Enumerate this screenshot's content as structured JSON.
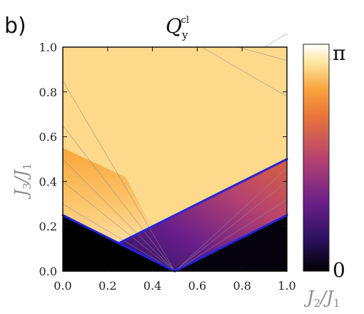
{
  "panel_tag": "b)",
  "chart_data": {
    "type": "heatmap",
    "title": {
      "symbol": "Q",
      "superscript": "cl",
      "subscript": "y"
    },
    "xlabel": {
      "num": "J",
      "num_sub": "2",
      "den": "J",
      "den_sub": "1"
    },
    "ylabel": {
      "num": "J",
      "num_sub": "3",
      "den": "J",
      "den_sub": "1"
    },
    "xlim": [
      0,
      1
    ],
    "ylim": [
      0,
      1
    ],
    "x_ticks": [
      0,
      0.2,
      0.4,
      0.6,
      0.8,
      1.0
    ],
    "y_ticks": [
      0,
      0.2,
      0.4,
      0.6,
      0.8,
      1.0
    ],
    "x_tick_labels": [
      "0.0",
      "0.2",
      "0.4",
      "0.6",
      "0.8",
      "1.0"
    ],
    "y_tick_labels": [
      "0.0",
      "0.2",
      "0.4",
      "0.6",
      "0.8",
      "1.0"
    ],
    "colorbar": {
      "min": 0,
      "max": 3.14159,
      "min_label": "0",
      "max_label": "π"
    },
    "colormap": [
      "#000000",
      "#2b1160",
      "#6a1f8a",
      "#b8436f",
      "#e8743a",
      "#f9a23b",
      "#fde7a0",
      "#ffffff"
    ],
    "phase_boundaries": [
      {
        "name": "left-boundary",
        "points": [
          [
            0,
            0.25
          ],
          [
            0.25,
            0.125
          ]
        ]
      },
      {
        "name": "middle-boundary",
        "points": [
          [
            0.25,
            0.125
          ],
          [
            0.5,
            0
          ]
        ]
      },
      {
        "name": "upper-boundary",
        "points": [
          [
            0.25,
            0.125
          ],
          [
            1.0,
            0.5
          ]
        ]
      },
      {
        "name": "lower-boundary",
        "points": [
          [
            0.5,
            0
          ],
          [
            1.0,
            0.25
          ]
        ]
      }
    ],
    "boundary_color": "#2323d8",
    "regions": [
      {
        "name": "zero-region",
        "value": 0,
        "vertices": [
          [
            0,
            0
          ],
          [
            0.5,
            0
          ],
          [
            0.25,
            0.125
          ],
          [
            0,
            0.25
          ]
        ]
      },
      {
        "name": "near-pi-region",
        "value": 2.6,
        "vertices": [
          [
            0,
            0.25
          ],
          [
            0.25,
            0.125
          ],
          [
            1.0,
            0.5
          ],
          [
            1.0,
            1.0
          ],
          [
            0,
            1.0
          ]
        ]
      },
      {
        "name": "low-region",
        "value": 0.05,
        "vertices": [
          [
            0.5,
            0
          ],
          [
            1.0,
            0
          ],
          [
            1.0,
            0.25
          ]
        ]
      }
    ]
  }
}
